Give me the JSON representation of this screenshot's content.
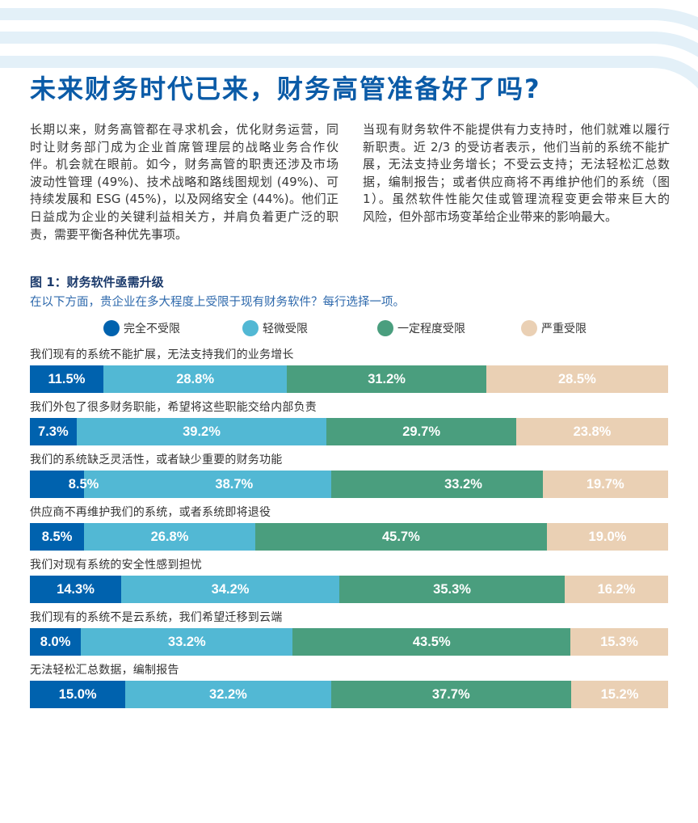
{
  "header": {
    "title": "未来财务时代已来，财务高管准备好了吗?"
  },
  "intro": {
    "left_lines": [
      "长期以来，财务高管都在寻求机会，优化财务运营，同",
      "时让财务部门成为企业首席管理层的战略业务合作伙",
      "伴。机会就在眼前。如今，财务高管的职责还涉及市场",
      "波动性管理 (49%)、技术战略和路线图规划 (49%)、可",
      "持续发展和 ESG (45%)，以及网络安全 (44%)。他们正",
      "日益成为企业的关键利益相关方，并肩负着更广泛的职",
      "责，需要平衡各种优先事项。"
    ],
    "right_lines": [
      "当现有财务软件不能提供有力支持时，他们就难以履行",
      "新职责。近 2/3 的受访者表示，他们当前的系统不能扩",
      "展，无法支持业务增长；不受云支持；无法轻松汇总数",
      "据，编制报告；或者供应商将不再维护他们的系统（图",
      "1）。虽然软件性能欠佳或管理流程变更会带来巨大的",
      "风险，但外部市场变革给企业带来的影响最大。"
    ]
  },
  "chart_data": {
    "type": "bar",
    "orientation": "horizontal",
    "stacked": true,
    "title": "图 1：财务软件亟需升级",
    "subtitle": "在以下方面，贵企业在多大程度上受限于现有财务软件？每行选择一项。",
    "xlabel": "",
    "ylabel": "",
    "unit": "%",
    "xlim": [
      0,
      100
    ],
    "grid": false,
    "legend_position": "top",
    "categories": [
      "我们现有的系统不能扩展，无法支持我们的业务增长",
      "我们外包了很多财务职能，希望将这些职能交给内部负责",
      "我们的系统缺乏灵活性，或者缺少重要的财务功能",
      "供应商不再维护我们的系统，或者系统即将退役",
      "我们对现有系统的安全性感到担忧",
      "我们现有的系统不是云系统，我们希望迁移到云端",
      "无法轻松汇总数据，编制报告"
    ],
    "series": [
      {
        "name": "完全不受限",
        "color": "#0062AE",
        "values": [
          11.5,
          7.3,
          8.5,
          8.5,
          14.3,
          8.0,
          15.0
        ],
        "labels": [
          "11.5%",
          "7.3%",
          "8.5%",
          "8.5%",
          "14.3%",
          "8.0%",
          "15.0%"
        ]
      },
      {
        "name": "轻微受限",
        "color": "#52B8D4",
        "values": [
          28.8,
          39.2,
          38.7,
          26.8,
          34.2,
          33.2,
          32.2
        ],
        "labels": [
          "28.8%",
          "39.2%",
          "38.7%",
          "26.8%",
          "34.2%",
          "33.2%",
          "32.2%"
        ]
      },
      {
        "name": "一定程度受限",
        "color": "#4A9E7E",
        "values": [
          31.2,
          29.7,
          33.2,
          45.7,
          35.3,
          43.5,
          37.7
        ],
        "labels": [
          "31.2%",
          "29.7%",
          "33.2%",
          "45.7%",
          "35.3%",
          "43.5%",
          "37.7%"
        ]
      },
      {
        "name": "严重受限",
        "color": "#EAD0B4",
        "values": [
          28.5,
          23.8,
          19.7,
          19.0,
          16.2,
          15.3,
          15.2
        ],
        "labels": [
          "28.5%",
          "23.8%",
          "19.7%",
          "19.0%",
          "16.2%",
          "15.3%",
          "15.2%"
        ]
      }
    ]
  }
}
